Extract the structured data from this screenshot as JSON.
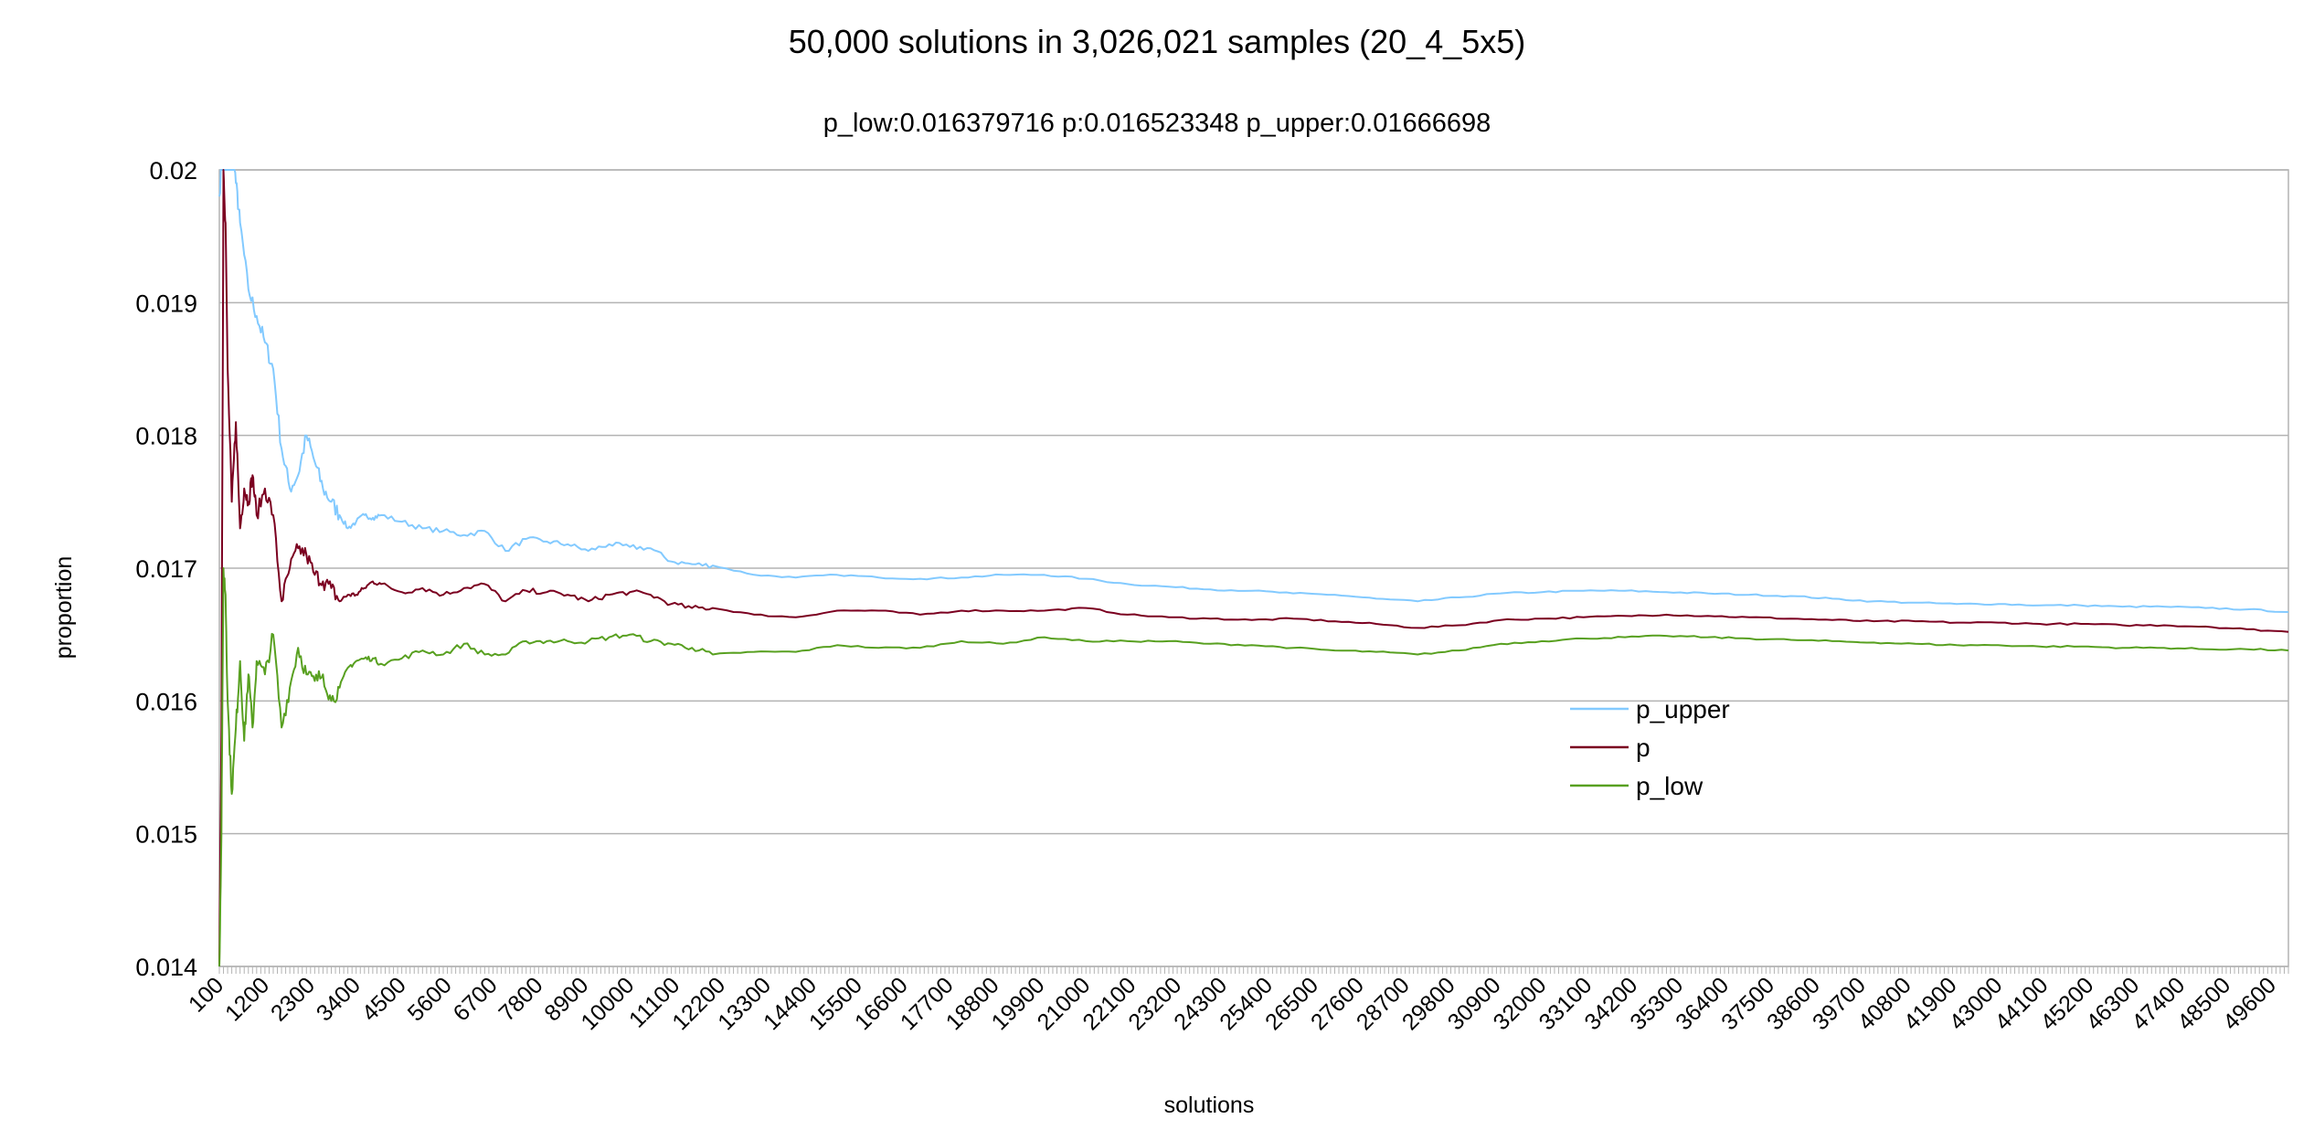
{
  "chart_data": {
    "type": "line",
    "title": "50,000 solutions in 3,026,021 samples  (20_4_5x5)",
    "subtitle": "p_low:0.016379716  p:0.016523348  p_upper:0.01666698",
    "xlabel": "solutions",
    "ylabel": "proportion",
    "xlim": [
      100,
      50000
    ],
    "ylim": [
      0.014,
      0.02
    ],
    "y_ticks": [
      "0.014",
      "0.015",
      "0.016",
      "0.017",
      "0.018",
      "0.019",
      "0.02"
    ],
    "x_tick_labels": [
      "100",
      "1200",
      "2300",
      "3400",
      "4500",
      "5600",
      "6700",
      "7800",
      "8900",
      "10000",
      "11100",
      "12200",
      "13300",
      "14400",
      "15500",
      "16600",
      "17700",
      "18800",
      "19900",
      "21000",
      "22100",
      "23200",
      "24300",
      "25400",
      "26500",
      "27600",
      "28700",
      "29800",
      "30900",
      "32000",
      "33100",
      "34200",
      "35300",
      "36400",
      "37500",
      "38600",
      "39700",
      "40800",
      "41900",
      "43000",
      "44100",
      "45200",
      "46300",
      "47400",
      "48500",
      "49600"
    ],
    "grid": true,
    "legend_position": "right",
    "series": [
      {
        "name": "p_upper",
        "color": "#83caff",
        "x": [
          100,
          200,
          300,
          400,
          500,
          600,
          800,
          1000,
          1200,
          1400,
          1600,
          1800,
          2000,
          2200,
          2400,
          2600,
          2800,
          3000,
          3200,
          3400,
          3600,
          3800,
          4000,
          4500,
          5000,
          5500,
          6000,
          6500,
          7000,
          7500,
          8000,
          8500,
          9000,
          9500,
          10000,
          10500,
          11000,
          11500,
          12000,
          13000,
          14000,
          15000,
          16000,
          17000,
          18000,
          19000,
          20000,
          21000,
          22000,
          23000,
          24000,
          25000,
          26000,
          27000,
          28000,
          29000,
          30000,
          31000,
          32000,
          33000,
          34000,
          35000,
          36000,
          37000,
          38000,
          39000,
          40000,
          41000,
          42000,
          43000,
          44000,
          45000,
          46000,
          47000,
          48000,
          49000,
          50000
        ],
        "values": [
          0.0198,
          0.0203,
          0.0205,
          0.0204,
          0.0199,
          0.0196,
          0.0191,
          0.0189,
          0.0187,
          0.0185,
          0.0179,
          0.0176,
          0.0177,
          0.018,
          0.0178,
          0.0176,
          0.0175,
          0.0174,
          0.0173,
          0.01735,
          0.0174,
          0.01738,
          0.0174,
          0.01735,
          0.0173,
          0.01728,
          0.01725,
          0.01728,
          0.01713,
          0.01722,
          0.0172,
          0.01718,
          0.01713,
          0.01718,
          0.01716,
          0.01715,
          0.01705,
          0.01703,
          0.01702,
          0.01695,
          0.01693,
          0.01695,
          0.01693,
          0.01692,
          0.01693,
          0.01695,
          0.01695,
          0.01692,
          0.01688,
          0.01686,
          0.01684,
          0.01683,
          0.01681,
          0.0168,
          0.01677,
          0.01675,
          0.01678,
          0.01681,
          0.01682,
          0.01683,
          0.01683,
          0.01682,
          0.01681,
          0.0168,
          0.01679,
          0.01677,
          0.01675,
          0.01674,
          0.01673,
          0.01673,
          0.01672,
          0.01672,
          0.01671,
          0.01671,
          0.0167,
          0.01669,
          0.01667
        ]
      },
      {
        "name": "p",
        "color": "#7b0020",
        "x": [
          100,
          150,
          200,
          250,
          300,
          400,
          500,
          600,
          700,
          800,
          900,
          1000,
          1200,
          1400,
          1600,
          1800,
          2000,
          2200,
          2400,
          2600,
          2800,
          3000,
          3200,
          3400,
          3600,
          3800,
          4000,
          4500,
          5000,
          5500,
          6000,
          6500,
          7000,
          7500,
          8000,
          8500,
          9000,
          9500,
          10000,
          10500,
          11000,
          11500,
          12000,
          13000,
          14000,
          15000,
          16000,
          17000,
          18000,
          19000,
          20000,
          21000,
          22000,
          23000,
          24000,
          25000,
          26000,
          27000,
          28000,
          29000,
          30000,
          31000,
          32000,
          33000,
          34000,
          35000,
          36000,
          37000,
          38000,
          39000,
          40000,
          41000,
          42000,
          43000,
          44000,
          45000,
          46000,
          47000,
          48000,
          49000,
          50000
        ],
        "values": [
          0.014,
          0.0158,
          0.02,
          0.0196,
          0.0185,
          0.0175,
          0.0181,
          0.0173,
          0.0176,
          0.0175,
          0.0177,
          0.0174,
          0.0176,
          0.0174,
          0.01675,
          0.017,
          0.01715,
          0.0171,
          0.01695,
          0.0169,
          0.01685,
          0.01675,
          0.0168,
          0.0168,
          0.01685,
          0.0169,
          0.01688,
          0.01682,
          0.01685,
          0.0168,
          0.01685,
          0.01688,
          0.01675,
          0.01683,
          0.01682,
          0.0168,
          0.01675,
          0.0168,
          0.01682,
          0.0168,
          0.01673,
          0.0167,
          0.0167,
          0.01665,
          0.01663,
          0.01668,
          0.01668,
          0.01665,
          0.01668,
          0.01668,
          0.01668,
          0.0167,
          0.01665,
          0.01663,
          0.01662,
          0.01661,
          0.01662,
          0.0166,
          0.01658,
          0.01655,
          0.01657,
          0.01661,
          0.01662,
          0.01663,
          0.01664,
          0.01665,
          0.01664,
          0.01663,
          0.01662,
          0.01661,
          0.0166,
          0.0166,
          0.01659,
          0.01659,
          0.01658,
          0.01658,
          0.01657,
          0.01657,
          0.01656,
          0.01654,
          0.01652
        ]
      },
      {
        "name": "p_low",
        "color": "#58a020",
        "x": [
          100,
          150,
          200,
          250,
          300,
          400,
          500,
          600,
          700,
          800,
          900,
          1000,
          1200,
          1400,
          1600,
          1800,
          2000,
          2200,
          2400,
          2600,
          2800,
          3000,
          3200,
          3400,
          3600,
          3800,
          4000,
          4500,
          5000,
          5500,
          6000,
          6500,
          7000,
          7500,
          8000,
          8500,
          9000,
          9500,
          10000,
          10500,
          11000,
          11500,
          12000,
          13000,
          14000,
          15000,
          16000,
          17000,
          18000,
          19000,
          20000,
          21000,
          22000,
          23000,
          24000,
          25000,
          26000,
          27000,
          28000,
          29000,
          30000,
          31000,
          32000,
          33000,
          34000,
          35000,
          36000,
          37000,
          38000,
          39000,
          40000,
          41000,
          42000,
          43000,
          44000,
          45000,
          46000,
          47000,
          48000,
          49000,
          50000
        ],
        "values": [
          0.014,
          0.015,
          0.017,
          0.0168,
          0.016,
          0.0153,
          0.0158,
          0.0163,
          0.0157,
          0.0162,
          0.0158,
          0.0163,
          0.0162,
          0.0165,
          0.0158,
          0.0161,
          0.0164,
          0.0162,
          0.01615,
          0.0162,
          0.016,
          0.0161,
          0.01625,
          0.0163,
          0.01632,
          0.01632,
          0.01628,
          0.01632,
          0.01638,
          0.01635,
          0.01643,
          0.01635,
          0.01635,
          0.01645,
          0.01645,
          0.01645,
          0.01645,
          0.01648,
          0.0165,
          0.01645,
          0.01643,
          0.0164,
          0.01635,
          0.01637,
          0.01637,
          0.01642,
          0.0164,
          0.0164,
          0.01645,
          0.01643,
          0.01648,
          0.01645,
          0.01645,
          0.01645,
          0.01643,
          0.01642,
          0.0164,
          0.01638,
          0.01637,
          0.01635,
          0.01638,
          0.01643,
          0.01645,
          0.01647,
          0.01648,
          0.01649,
          0.01648,
          0.01647,
          0.01646,
          0.01645,
          0.01644,
          0.01643,
          0.01642,
          0.01642,
          0.01641,
          0.01641,
          0.0164,
          0.0164,
          0.01639,
          0.01639,
          0.01638
        ]
      }
    ]
  }
}
